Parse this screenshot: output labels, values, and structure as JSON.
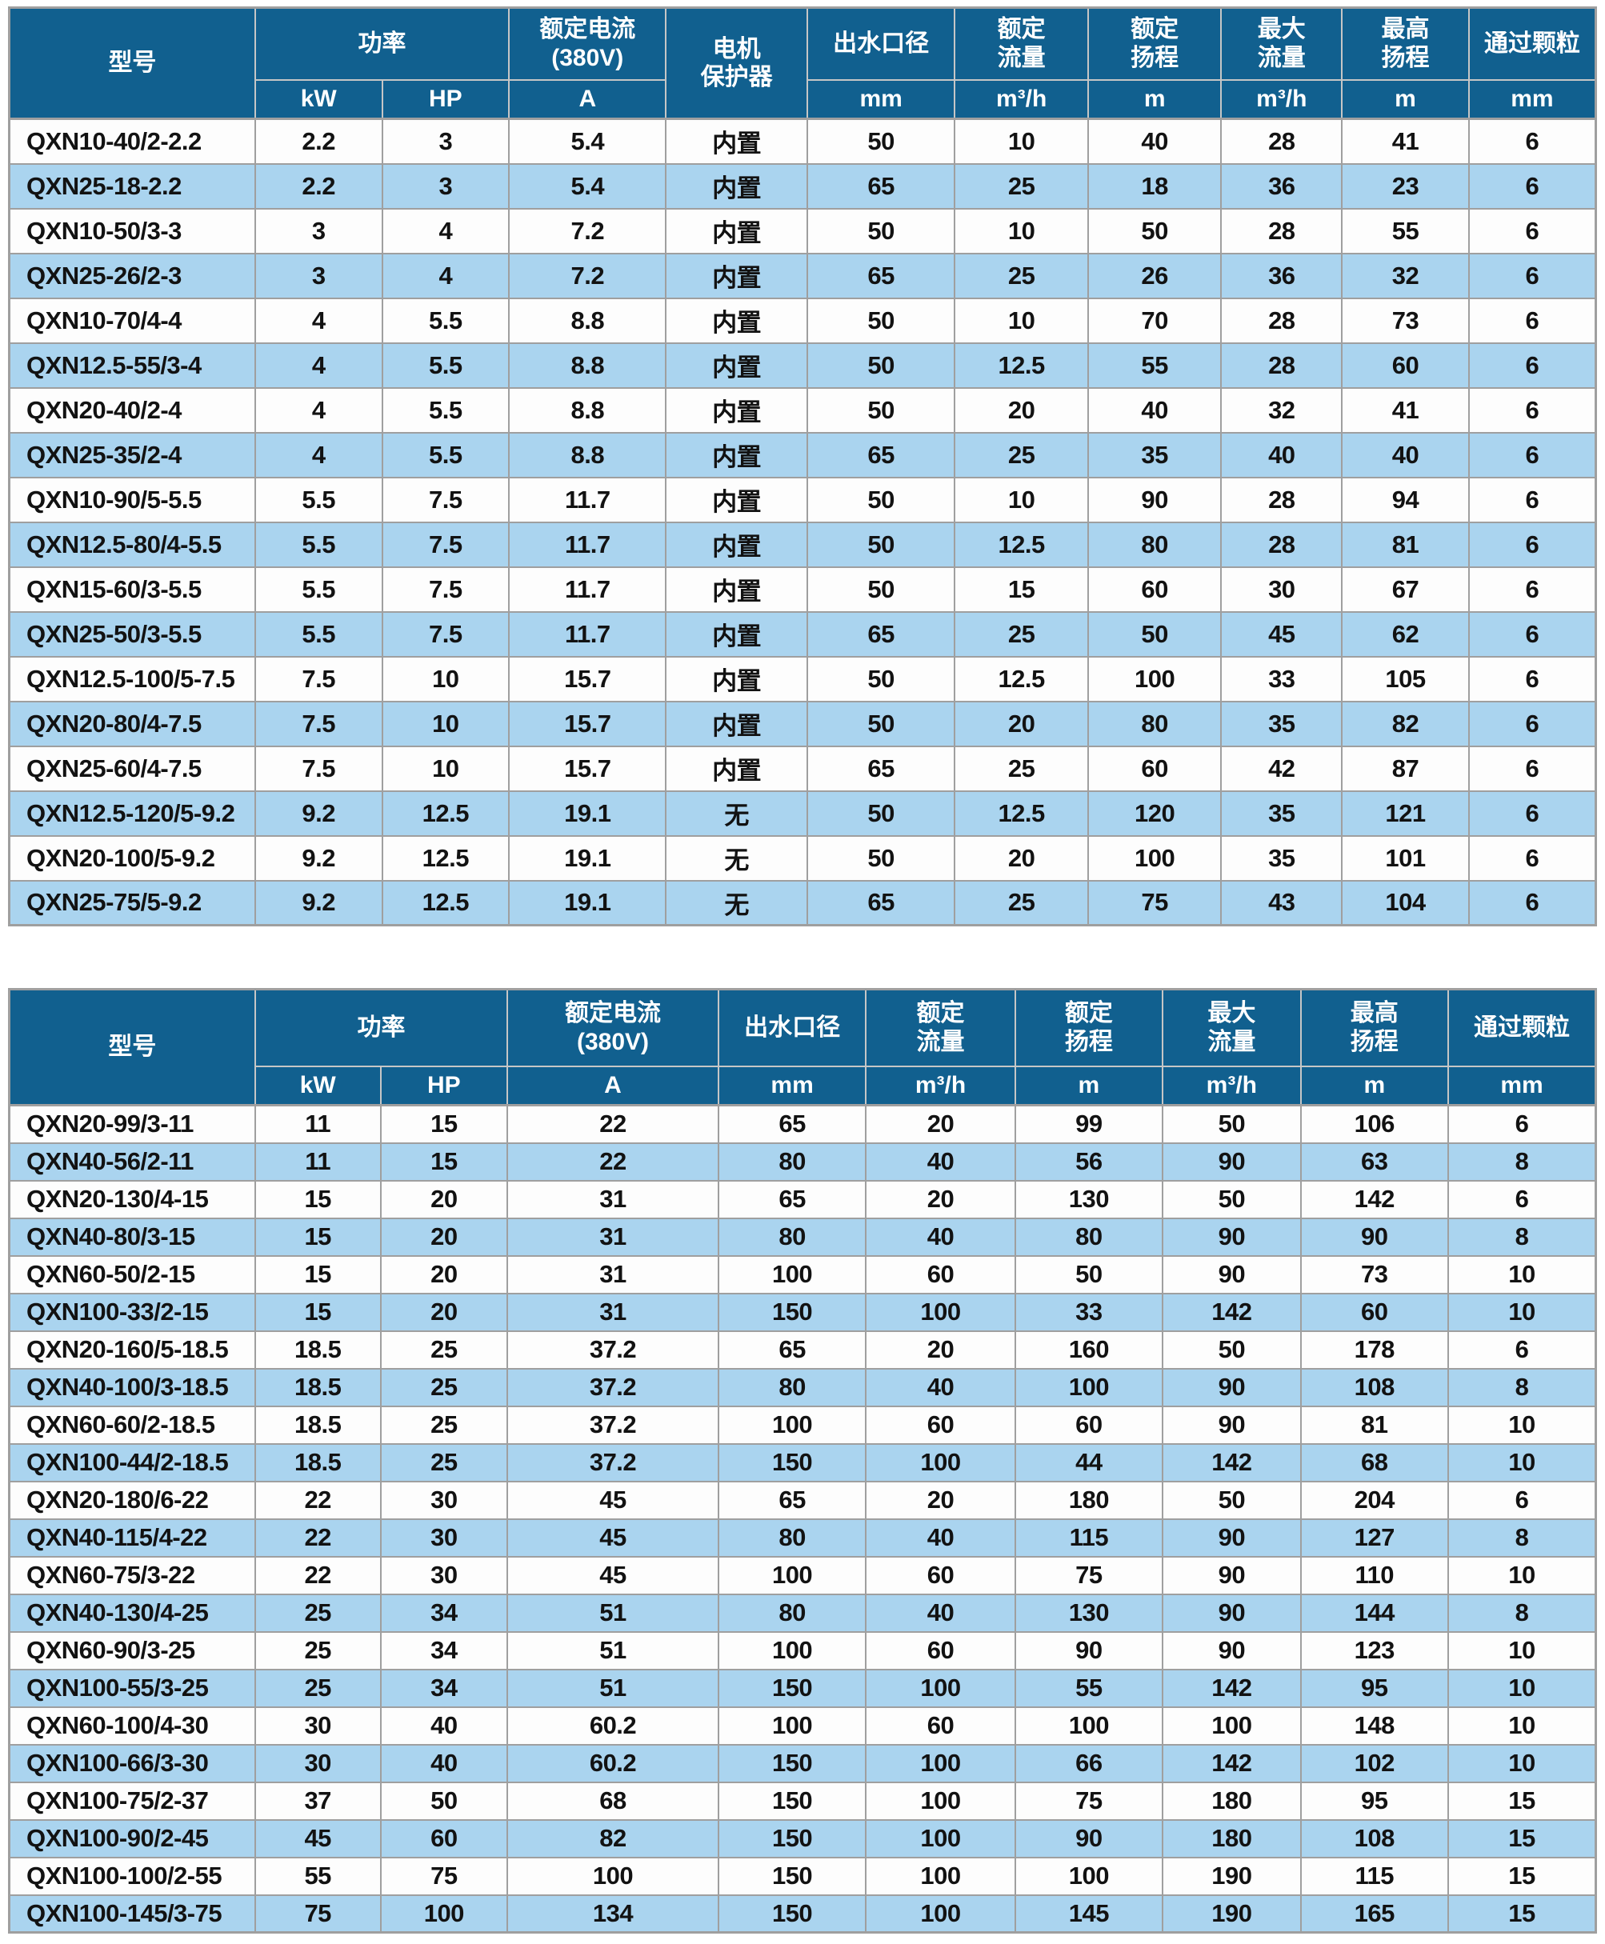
{
  "colors": {
    "header_bg": "#11608f",
    "header_text": "#ffffff",
    "row_bg": "#fdfdfd",
    "row_alt_bg": "#aad4ef",
    "grid": "#9f9f9f",
    "header_grid": "#c6c6c6",
    "data_text": "#121212"
  },
  "table1": {
    "header": {
      "model": "型号",
      "power": "功率",
      "rated_current": "额定电流\n(380V)",
      "motor_protector": "电机\n保护器",
      "outlet_diameter": "出水口径",
      "rated_flow": "额定\n流量",
      "rated_head": "额定\n扬程",
      "max_flow": "最大\n流量",
      "max_head": "最高\n扬程",
      "particle": "通过颗粒",
      "units": [
        "kW",
        "HP",
        "A",
        "mm",
        "m³/h",
        "m",
        "m³/h",
        "m",
        "mm"
      ]
    },
    "rows": [
      [
        "QXN10-40/2-2.2",
        "2.2",
        "3",
        "5.4",
        "内置",
        "50",
        "10",
        "40",
        "28",
        "41",
        "6"
      ],
      [
        "QXN25-18-2.2",
        "2.2",
        "3",
        "5.4",
        "内置",
        "65",
        "25",
        "18",
        "36",
        "23",
        "6"
      ],
      [
        "QXN10-50/3-3",
        "3",
        "4",
        "7.2",
        "内置",
        "50",
        "10",
        "50",
        "28",
        "55",
        "6"
      ],
      [
        "QXN25-26/2-3",
        "3",
        "4",
        "7.2",
        "内置",
        "65",
        "25",
        "26",
        "36",
        "32",
        "6"
      ],
      [
        "QXN10-70/4-4",
        "4",
        "5.5",
        "8.8",
        "内置",
        "50",
        "10",
        "70",
        "28",
        "73",
        "6"
      ],
      [
        "QXN12.5-55/3-4",
        "4",
        "5.5",
        "8.8",
        "内置",
        "50",
        "12.5",
        "55",
        "28",
        "60",
        "6"
      ],
      [
        "QXN20-40/2-4",
        "4",
        "5.5",
        "8.8",
        "内置",
        "50",
        "20",
        "40",
        "32",
        "41",
        "6"
      ],
      [
        "QXN25-35/2-4",
        "4",
        "5.5",
        "8.8",
        "内置",
        "65",
        "25",
        "35",
        "40",
        "40",
        "6"
      ],
      [
        "QXN10-90/5-5.5",
        "5.5",
        "7.5",
        "11.7",
        "内置",
        "50",
        "10",
        "90",
        "28",
        "94",
        "6"
      ],
      [
        "QXN12.5-80/4-5.5",
        "5.5",
        "7.5",
        "11.7",
        "内置",
        "50",
        "12.5",
        "80",
        "28",
        "81",
        "6"
      ],
      [
        "QXN15-60/3-5.5",
        "5.5",
        "7.5",
        "11.7",
        "内置",
        "50",
        "15",
        "60",
        "30",
        "67",
        "6"
      ],
      [
        "QXN25-50/3-5.5",
        "5.5",
        "7.5",
        "11.7",
        "内置",
        "65",
        "25",
        "50",
        "45",
        "62",
        "6"
      ],
      [
        "QXN12.5-100/5-7.5",
        "7.5",
        "10",
        "15.7",
        "内置",
        "50",
        "12.5",
        "100",
        "33",
        "105",
        "6"
      ],
      [
        "QXN20-80/4-7.5",
        "7.5",
        "10",
        "15.7",
        "内置",
        "50",
        "20",
        "80",
        "35",
        "82",
        "6"
      ],
      [
        "QXN25-60/4-7.5",
        "7.5",
        "10",
        "15.7",
        "内置",
        "65",
        "25",
        "60",
        "42",
        "87",
        "6"
      ],
      [
        "QXN12.5-120/5-9.2",
        "9.2",
        "12.5",
        "19.1",
        "无",
        "50",
        "12.5",
        "120",
        "35",
        "121",
        "6"
      ],
      [
        "QXN20-100/5-9.2",
        "9.2",
        "12.5",
        "19.1",
        "无",
        "50",
        "20",
        "100",
        "35",
        "101",
        "6"
      ],
      [
        "QXN25-75/5-9.2",
        "9.2",
        "12.5",
        "19.1",
        "无",
        "65",
        "25",
        "75",
        "43",
        "104",
        "6"
      ]
    ]
  },
  "table2": {
    "header": {
      "model": "型号",
      "power": "功率",
      "rated_current": "额定电流\n(380V)",
      "outlet_diameter": "出水口径",
      "rated_flow": "额定\n流量",
      "rated_head": "额定\n扬程",
      "max_flow": "最大\n流量",
      "max_head": "最高\n扬程",
      "particle": "通过颗粒",
      "units": [
        "kW",
        "HP",
        "A",
        "mm",
        "m³/h",
        "m",
        "m³/h",
        "m",
        "mm"
      ]
    },
    "rows": [
      [
        "QXN20-99/3-11",
        "11",
        "15",
        "22",
        "65",
        "20",
        "99",
        "50",
        "106",
        "6"
      ],
      [
        "QXN40-56/2-11",
        "11",
        "15",
        "22",
        "80",
        "40",
        "56",
        "90",
        "63",
        "8"
      ],
      [
        "QXN20-130/4-15",
        "15",
        "20",
        "31",
        "65",
        "20",
        "130",
        "50",
        "142",
        "6"
      ],
      [
        "QXN40-80/3-15",
        "15",
        "20",
        "31",
        "80",
        "40",
        "80",
        "90",
        "90",
        "8"
      ],
      [
        "QXN60-50/2-15",
        "15",
        "20",
        "31",
        "100",
        "60",
        "50",
        "90",
        "73",
        "10"
      ],
      [
        "QXN100-33/2-15",
        "15",
        "20",
        "31",
        "150",
        "100",
        "33",
        "142",
        "60",
        "10"
      ],
      [
        "QXN20-160/5-18.5",
        "18.5",
        "25",
        "37.2",
        "65",
        "20",
        "160",
        "50",
        "178",
        "6"
      ],
      [
        "QXN40-100/3-18.5",
        "18.5",
        "25",
        "37.2",
        "80",
        "40",
        "100",
        "90",
        "108",
        "8"
      ],
      [
        "QXN60-60/2-18.5",
        "18.5",
        "25",
        "37.2",
        "100",
        "60",
        "60",
        "90",
        "81",
        "10"
      ],
      [
        "QXN100-44/2-18.5",
        "18.5",
        "25",
        "37.2",
        "150",
        "100",
        "44",
        "142",
        "68",
        "10"
      ],
      [
        "QXN20-180/6-22",
        "22",
        "30",
        "45",
        "65",
        "20",
        "180",
        "50",
        "204",
        "6"
      ],
      [
        "QXN40-115/4-22",
        "22",
        "30",
        "45",
        "80",
        "40",
        "115",
        "90",
        "127",
        "8"
      ],
      [
        "QXN60-75/3-22",
        "22",
        "30",
        "45",
        "100",
        "60",
        "75",
        "90",
        "110",
        "10"
      ],
      [
        "QXN40-130/4-25",
        "25",
        "34",
        "51",
        "80",
        "40",
        "130",
        "90",
        "144",
        "8"
      ],
      [
        "QXN60-90/3-25",
        "25",
        "34",
        "51",
        "100",
        "60",
        "90",
        "90",
        "123",
        "10"
      ],
      [
        "QXN100-55/3-25",
        "25",
        "34",
        "51",
        "150",
        "100",
        "55",
        "142",
        "95",
        "10"
      ],
      [
        "QXN60-100/4-30",
        "30",
        "40",
        "60.2",
        "100",
        "60",
        "100",
        "100",
        "148",
        "10"
      ],
      [
        "QXN100-66/3-30",
        "30",
        "40",
        "60.2",
        "150",
        "100",
        "66",
        "142",
        "102",
        "10"
      ],
      [
        "QXN100-75/2-37",
        "37",
        "50",
        "68",
        "150",
        "100",
        "75",
        "180",
        "95",
        "15"
      ],
      [
        "QXN100-90/2-45",
        "45",
        "60",
        "82",
        "150",
        "100",
        "90",
        "180",
        "108",
        "15"
      ],
      [
        "QXN100-100/2-55",
        "55",
        "75",
        "100",
        "150",
        "100",
        "100",
        "190",
        "115",
        "15"
      ],
      [
        "QXN100-145/3-75",
        "75",
        "100",
        "134",
        "150",
        "100",
        "145",
        "190",
        "165",
        "15"
      ]
    ]
  }
}
